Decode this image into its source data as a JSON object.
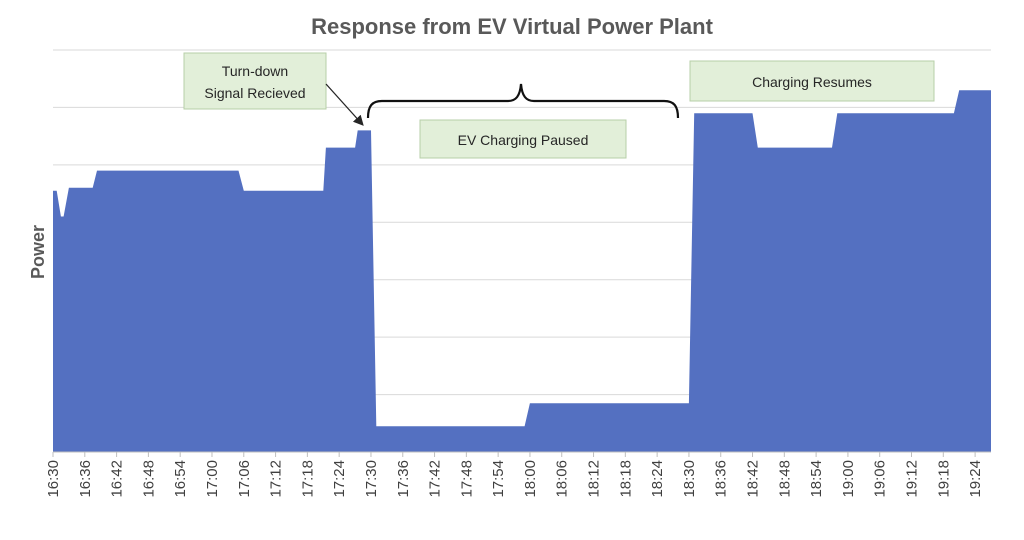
{
  "chart_data": {
    "type": "area",
    "title": "Response from EV Virtual Power Plant",
    "xlabel": "",
    "ylabel": "Power",
    "ylim": [
      0,
      7
    ],
    "grid": true,
    "legend": "none",
    "x_ticks": [
      "16:30",
      "16:36",
      "16:42",
      "16:48",
      "16:54",
      "17:00",
      "17:06",
      "17:12",
      "17:18",
      "17:24",
      "17:30",
      "17:36",
      "17:42",
      "17:48",
      "17:54",
      "18:00",
      "18:06",
      "18:12",
      "18:18",
      "18:24",
      "18:30",
      "18:36",
      "18:42",
      "18:48",
      "18:54",
      "19:00",
      "19:06",
      "19:12",
      "19:18",
      "19:24"
    ],
    "x_range": [
      "16:30",
      "19:27"
    ],
    "series": [
      {
        "color": "#5470c1",
        "points": [
          {
            "x": "16:30",
            "y": 4.55
          },
          {
            "x": "16:30.7",
            "y": 4.55
          },
          {
            "x": "16:31.5",
            "y": 4.1
          },
          {
            "x": "16:32",
            "y": 4.1
          },
          {
            "x": "16:33",
            "y": 4.6
          },
          {
            "x": "16:37.5",
            "y": 4.6
          },
          {
            "x": "16:38.3",
            "y": 4.9
          },
          {
            "x": "17:05",
            "y": 4.9
          },
          {
            "x": "17:06",
            "y": 4.55
          },
          {
            "x": "17:21",
            "y": 4.55
          },
          {
            "x": "17:21.5",
            "y": 5.3
          },
          {
            "x": "17:27",
            "y": 5.3
          },
          {
            "x": "17:27.5",
            "y": 5.6
          },
          {
            "x": "17:30",
            "y": 5.6
          },
          {
            "x": "17:31",
            "y": 0.45
          },
          {
            "x": "17:59",
            "y": 0.45
          },
          {
            "x": "18:00",
            "y": 0.85
          },
          {
            "x": "18:30",
            "y": 0.85
          },
          {
            "x": "18:31",
            "y": 5.9
          },
          {
            "x": "18:42",
            "y": 5.9
          },
          {
            "x": "18:43",
            "y": 5.3
          },
          {
            "x": "18:57",
            "y": 5.3
          },
          {
            "x": "18:58",
            "y": 5.9
          },
          {
            "x": "19:20",
            "y": 5.9
          },
          {
            "x": "19:21",
            "y": 6.3
          },
          {
            "x": "19:27",
            "y": 6.3
          }
        ]
      }
    ],
    "annotations": [
      {
        "lines": [
          "Turn-down",
          "Signal Recieved"
        ],
        "target_x": "17:30",
        "target_y": 5.6
      },
      {
        "lines": [
          "EV Charging Paused"
        ],
        "span": [
          "17:30",
          "18:30"
        ]
      },
      {
        "lines": [
          "Charging Resumes"
        ]
      }
    ]
  }
}
